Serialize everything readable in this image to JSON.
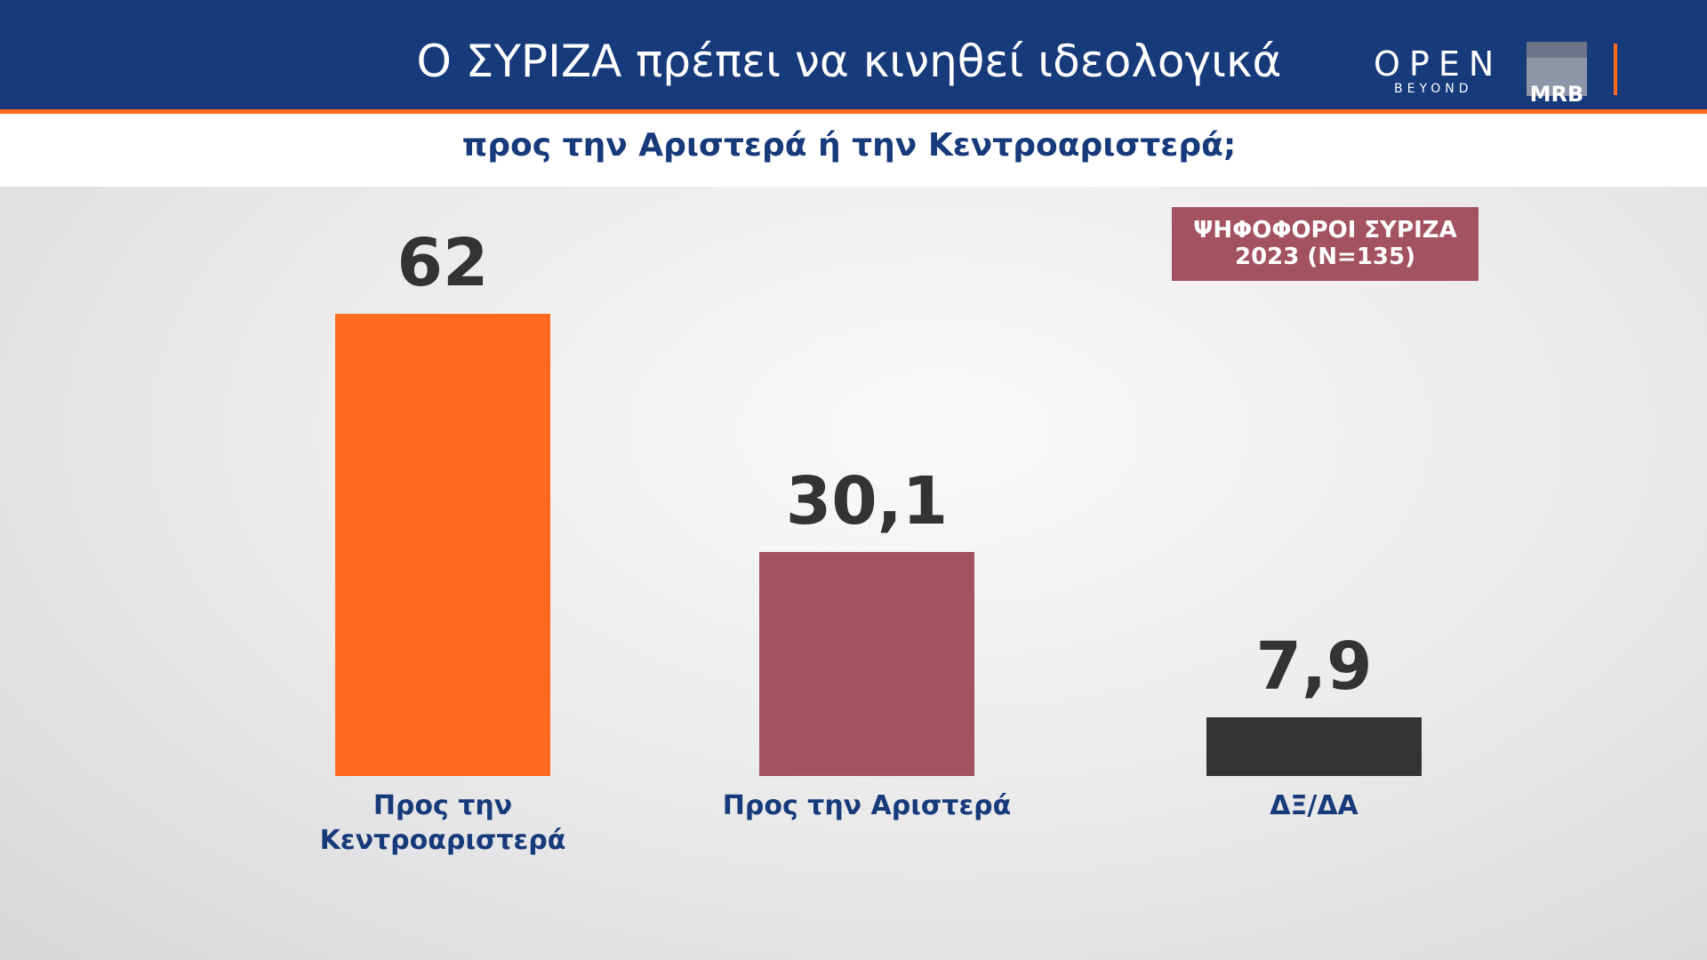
{
  "chart_data": {
    "type": "bar",
    "title": "Ο ΣΥΡΙΖΑ πρέπει να κινηθεί ιδεολογικά",
    "subtitle": "προς την Αριστερά ή την Κεντροαριστερά;",
    "annotation": "ΨΗΦΟΦΟΡΟΙ ΣΥΡΙΖΑ 2023 (N=135)",
    "categories": [
      "Προς την Κεντροαριστερά",
      "Προς την Αριστερά",
      "ΔΞ/ΔΑ"
    ],
    "values": [
      62,
      30.1,
      7.9
    ],
    "value_labels": [
      "62",
      "30,1",
      "7,9"
    ],
    "colors": [
      "#ff6a1f",
      "#a25260",
      "#333333"
    ]
  },
  "logos": {
    "channel": "OPEN",
    "channel_tagline": "BEYOND",
    "pollster": "MRB"
  }
}
